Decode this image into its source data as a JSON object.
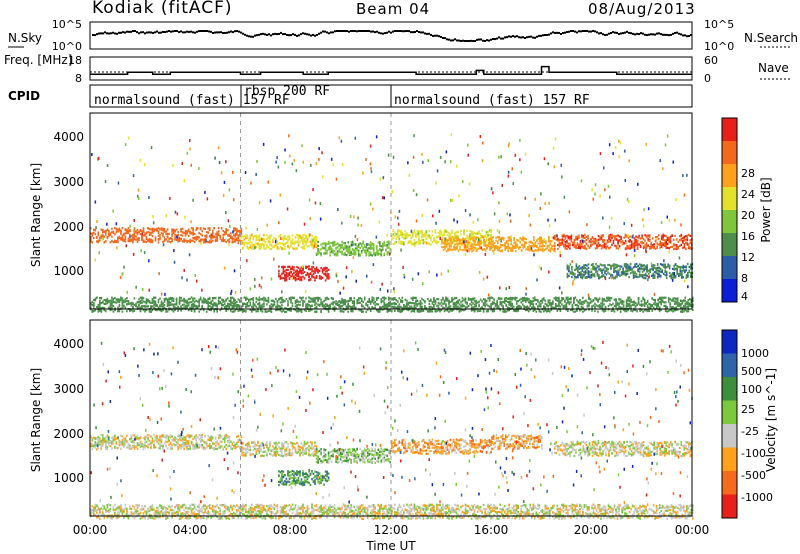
{
  "header": {
    "station": "Kodiak (fitACF)",
    "beam": "Beam 04",
    "date": "08/Aug/2013"
  },
  "chart_data": [
    {
      "type": "line",
      "title": "",
      "ylabel_left": "N.Sky",
      "ylabel_right": "N.Search",
      "left_ticks": [
        "10^5",
        "10^0"
      ],
      "right_ticks": [
        "10^5",
        "10^0"
      ],
      "yscale": "log",
      "ylim": [
        1,
        100000
      ]
    },
    {
      "type": "line",
      "ylabel_left": "Freq. [MHz]",
      "ylabel_right": "Nave",
      "left_ticks": [
        "18",
        "8"
      ],
      "right_ticks": [
        "60",
        "0"
      ],
      "ylim": [
        8,
        18
      ],
      "series": [
        {
          "name": "",
          "x_hours": [
            0,
            1.5,
            1.5,
            2.5,
            2.5,
            3.2,
            3.2,
            6.0,
            6.0,
            6.8,
            6.8,
            8.5,
            8.5,
            9.5,
            9.5,
            13.0,
            13.0,
            15.4,
            15.4,
            15.7,
            15.7,
            18.0,
            18.0,
            18.3,
            18.3,
            21.0,
            21.0,
            24
          ],
          "values": [
            10,
            10,
            11,
            11,
            10,
            10,
            11,
            11,
            10,
            10,
            11,
            11,
            10,
            10,
            11,
            11,
            10,
            10,
            12,
            12,
            10,
            10,
            14,
            14,
            11,
            11,
            10,
            10
          ]
        }
      ]
    },
    {
      "type": "table",
      "label": "CPID",
      "segments": [
        {
          "start_hour": 0,
          "end_hour": 6,
          "text": "normalsound (fast) 157 RF"
        },
        {
          "start_hour": 6,
          "end_hour": 12,
          "text": "rbsp 200 RF"
        },
        {
          "start_hour": 12,
          "end_hour": 24,
          "text": "normalsound (fast) 157 RF"
        }
      ]
    },
    {
      "type": "heatmap",
      "ylabel": "Slant Range [km]",
      "yticks": [
        "1000",
        "2000",
        "3000",
        "4000"
      ],
      "ylim": [
        180,
        4550
      ],
      "colorbar_label": "Power [dB]",
      "colorbar_ticks": [
        "4",
        "8",
        "12",
        "16",
        "20",
        "24",
        "28"
      ],
      "colorbar_range": [
        0,
        30
      ],
      "colors": [
        "#0a1fd6",
        "#2c5ea8",
        "#4b8f4b",
        "#7ec73c",
        "#e3e12a",
        "#ffa11a",
        "#f5681c",
        "#e8201a"
      ],
      "bands": [
        {
          "start_hour": 0.0,
          "end_hour": 6.0,
          "range_km": 1850,
          "level": 22
        },
        {
          "start_hour": 6.0,
          "end_hour": 9.0,
          "range_km": 1700,
          "level": 16
        },
        {
          "start_hour": 7.5,
          "end_hour": 9.5,
          "range_km": 1000,
          "level": 26
        },
        {
          "start_hour": 9.0,
          "end_hour": 12.0,
          "range_km": 1550,
          "level": 10
        },
        {
          "start_hour": 12.0,
          "end_hour": 16.0,
          "range_km": 1800,
          "level": 14
        },
        {
          "start_hour": 14.0,
          "end_hour": 18.5,
          "range_km": 1650,
          "level": 18
        },
        {
          "start_hour": 18.5,
          "end_hour": 24.0,
          "range_km": 1700,
          "level": 24
        },
        {
          "start_hour": 19.0,
          "end_hour": 24.0,
          "range_km": 1050,
          "level": 6
        },
        {
          "start_hour": 0.0,
          "end_hour": 24.0,
          "range_km": 300,
          "level": 8
        }
      ]
    },
    {
      "type": "heatmap",
      "xlabel": "Time UT",
      "xticks": [
        "00:00",
        "04:00",
        "08:00",
        "12:00",
        "16:00",
        "20:00",
        "00:00"
      ],
      "xlim_hours": [
        0,
        24
      ],
      "ylabel": "Slant Range [km]",
      "yticks": [
        "1000",
        "2000",
        "3000",
        "4000"
      ],
      "ylim": [
        180,
        4550
      ],
      "colorbar_label": "Velocity [m s^-1]",
      "colorbar_ticks": [
        "1000",
        "500",
        "100",
        "25",
        "-25",
        "-100",
        "-500",
        "-1000"
      ],
      "colors": [
        "#0c28c0",
        "#2e64a8",
        "#3c8f3c",
        "#7bc93d",
        "#c8c8c8",
        "#ffa11a",
        "#f56a1c",
        "#e8201a"
      ],
      "bands": [
        {
          "start_hour": 0.0,
          "end_hour": 6.0,
          "range_km": 1850,
          "level": 4
        },
        {
          "start_hour": 6.0,
          "end_hour": 9.0,
          "range_km": 1700,
          "level": 4
        },
        {
          "start_hour": 7.5,
          "end_hour": 9.5,
          "range_km": 1050,
          "level": 2
        },
        {
          "start_hour": 9.0,
          "end_hour": 12.0,
          "range_km": 1550,
          "level": 3
        },
        {
          "start_hour": 12.0,
          "end_hour": 16.0,
          "range_km": 1750,
          "level": 5
        },
        {
          "start_hour": 16.0,
          "end_hour": 18.0,
          "range_km": 1850,
          "level": 5
        },
        {
          "start_hour": 18.5,
          "end_hour": 24.0,
          "range_km": 1700,
          "level": 4
        },
        {
          "start_hour": 0.0,
          "end_hour": 24.0,
          "range_km": 300,
          "level": 4
        }
      ]
    }
  ]
}
